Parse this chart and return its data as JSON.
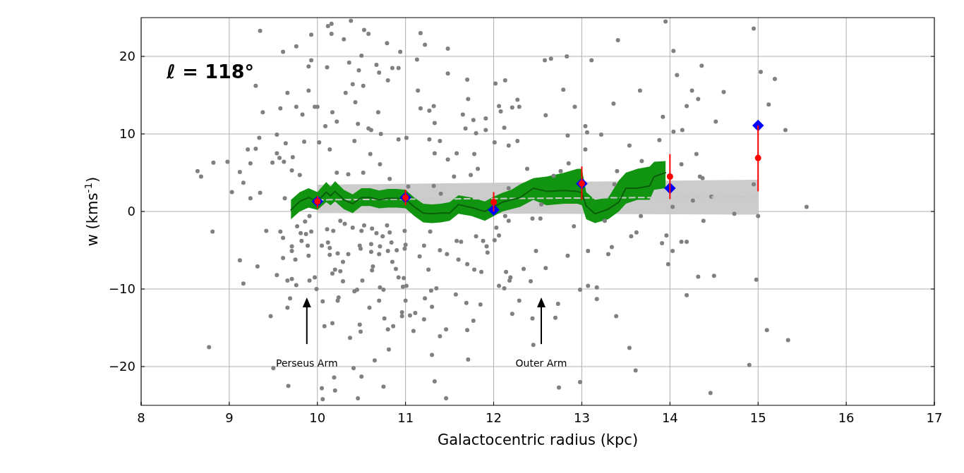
{
  "chart_data": {
    "type": "scatter",
    "xlabel": "Galactocentric radius (kpc)",
    "ylabel": "w (kms$^{-1}$)",
    "xlim": [
      8,
      17
    ],
    "ylim": [
      -25,
      25
    ],
    "xticks": [
      8,
      9,
      10,
      11,
      12,
      13,
      14,
      15,
      16,
      17
    ],
    "yticks": [
      -20,
      -10,
      0,
      10,
      20
    ],
    "grid": true,
    "annotations": [
      "ℓ = 118°",
      "Perseus Arm",
      "Outer Arm"
    ],
    "series": [
      {
        "type": "scatter",
        "color": "#808080",
        "marker": "circle",
        "x": [
          8.64,
          8.68,
          8.82,
          8.98,
          9.03,
          9.12,
          9.16,
          9.21,
          9.24,
          9.24,
          9.3,
          9.3,
          9.34,
          9.35,
          9.35,
          9.38,
          9.49,
          9.54,
          9.54,
          9.57,
          9.58,
          9.61,
          9.62,
          9.63,
          9.64,
          9.66,
          9.71,
          9.72,
          9.76,
          9.76,
          9.8,
          9.83,
          9.85,
          9.9,
          9.9,
          9.93,
          9.93,
          9.97,
          10.0,
          10.02,
          10.09,
          10.11,
          10.12,
          10.16,
          10.16,
          10.17,
          10.22,
          10.3,
          10.32,
          10.36,
          10.38,
          10.4,
          10.43,
          10.46,
          10.47,
          10.5,
          10.52,
          10.53,
          10.58,
          10.58,
          10.61,
          10.67,
          10.69,
          10.7,
          10.72,
          10.79,
          10.8,
          10.85,
          10.92,
          10.92,
          10.94,
          10.22,
          10.35,
          10.52,
          10.71,
          10.82,
          10.6,
          10.42,
          10.14,
          11.17,
          11.22,
          11.48,
          11.13,
          11.48,
          11.7,
          11.14,
          11.71,
          11.17,
          11.32,
          11.27,
          11.33,
          11.65,
          11.77,
          11.91,
          11.68,
          11.8,
          11.91,
          11.01,
          11.27,
          11.39,
          11.48,
          11.58,
          11.33,
          11.78,
          12.02,
          12.13,
          12.06,
          12.08,
          12.21,
          12.29,
          12.27,
          12.12,
          12.01,
          12.17,
          12.27,
          12.38,
          12.58,
          12.65,
          12.83,
          12.59,
          12.79,
          12.92,
          12.84,
          12.85,
          12.76,
          12.68,
          13.11,
          13.04,
          13.06,
          13.04,
          13.22,
          13.41,
          13.36,
          13.54,
          13.66,
          13.68,
          13.4,
          13.88,
          13.92,
          13.95,
          11.03,
          11.32,
          11.4,
          11.55,
          11.74,
          11.82,
          12.17,
          12.54,
          13.37,
          14.95,
          14.04,
          14.36,
          14.08,
          15.03,
          15.19,
          14.25,
          14.61,
          14.32,
          14.19,
          15.12,
          14.52,
          14.04,
          14.14,
          15.31,
          14.3,
          14.13,
          14.34,
          14.37,
          14.95,
          14.47,
          14.26,
          14.03,
          15.55,
          14.73,
          15.0,
          14.38,
          13.96,
          14.13,
          14.19,
          14.03,
          13.98,
          14.32,
          14.5,
          14.98,
          14.19,
          15.1,
          15.34,
          14.9,
          14.46,
          13.67,
          13.26,
          12.91,
          13.56,
          13.62,
          13.91,
          13.34,
          13.3,
          13.07,
          12.84,
          12.59,
          12.34,
          12.48,
          12.14,
          12.19,
          12.18,
          12.42,
          12.06,
          12.12,
          12.98,
          13.07,
          13.17,
          13.17,
          13.39,
          12.73,
          12.29,
          12.21,
          12.44,
          12.7,
          12.45,
          13.54,
          13.61,
          12.98,
          12.74,
          12.01,
          12.06,
          12.03,
          12.17,
          12.44,
          12.53,
          12.13,
          10.99,
          11.0,
          10.99,
          11.28,
          11.21,
          11.16,
          11.26,
          11.39,
          11.47,
          11.6,
          11.58,
          11.63,
          11.7,
          11.78,
          11.86,
          11.93,
          11.92,
          11.8,
          11.88,
          10.98,
          10.97,
          11.01,
          11.29,
          11.35,
          11.57,
          11.22,
          11.0,
          11.3,
          11.69,
          11.85,
          10.96,
          10.96,
          11.05,
          11.11,
          11.21,
          11.77,
          11.09,
          11.46,
          11.7,
          11.39,
          11.3,
          11.71,
          11.33,
          11.46,
          8.81,
          8.77,
          9.12,
          9.32,
          9.16,
          9.42,
          9.58,
          9.61,
          9.61,
          9.54,
          9.66,
          9.71,
          9.76,
          9.71,
          9.71,
          9.75,
          9.69,
          9.66,
          9.47,
          9.5,
          9.67,
          9.91,
          9.97,
          9.99,
          9.9,
          9.89,
          9.82,
          9.87,
          9.93,
          9.81,
          9.77,
          9.86,
          9.91,
          10.06,
          10.08,
          10.17,
          10.24,
          10.23,
          10.37,
          10.48,
          10.49,
          10.59,
          10.7,
          10.76,
          10.8,
          10.86,
          10.81,
          10.65,
          10.41,
          10.19,
          10.2,
          10.05,
          10.06,
          10.46,
          10.5,
          10.75,
          10.42,
          10.45,
          10.71,
          10.75,
          10.51,
          10.62,
          10.29,
          10.17,
          10.2,
          10.26,
          10.29,
          10.35,
          10.23,
          10.14,
          10.14,
          10.05,
          10.12,
          10.11,
          10.18,
          10.26,
          10.31,
          10.4,
          10.5,
          10.53,
          10.67,
          10.74,
          10.82,
          10.79,
          10.62,
          10.84,
          10.8,
          10.9,
          10.71,
          10.61,
          10.48,
          10.49,
          10.61,
          10.7,
          10.63,
          10.85,
          10.89,
          10.92
        ],
        "values": [
          5.2,
          4.5,
          6.3,
          6.4,
          2.5,
          5.1,
          3.7,
          8.0,
          6.2,
          1.7,
          16.2,
          8.1,
          9.5,
          2.4,
          23.3,
          12.8,
          6.3,
          7.5,
          9.9,
          6.9,
          13.3,
          20.6,
          6.4,
          1.7,
          8.8,
          15.3,
          5.3,
          7.0,
          21.3,
          13.5,
          4.7,
          12.5,
          9.0,
          15.6,
          18.7,
          19.5,
          22.8,
          13.5,
          13.5,
          8.9,
          11.0,
          18.6,
          23.9,
          24.2,
          22.9,
          12.8,
          11.6,
          22.2,
          15.3,
          19.2,
          24.6,
          16.4,
          14.1,
          11.3,
          18.2,
          20.1,
          16.2,
          23.4,
          22.9,
          10.7,
          10.5,
          18.9,
          12.8,
          17.9,
          10.0,
          21.7,
          16.9,
          18.5,
          18.5,
          9.3,
          20.6,
          5.0,
          4.8,
          5.0,
          6.1,
          4.2,
          7.4,
          9.1,
          8.0,
          23.0,
          21.5,
          21.0,
          19.6,
          17.8,
          17.0,
          15.6,
          14.5,
          13.3,
          13.6,
          13.0,
          11.4,
          12.5,
          11.8,
          12.0,
          10.7,
          10.1,
          10.5,
          9.5,
          9.3,
          9.1,
          6.7,
          7.5,
          7.5,
          7.4,
          16.5,
          16.9,
          13.6,
          12.9,
          13.4,
          13.5,
          14.4,
          10.8,
          8.9,
          8.5,
          9.1,
          5.5,
          19.5,
          19.7,
          20.0,
          12.4,
          15.7,
          13.5,
          9.8,
          6.2,
          5.2,
          4.6,
          19.5,
          11.0,
          10.2,
          8.0,
          9.9,
          22.1,
          13.9,
          8.5,
          15.6,
          6.5,
          5.2,
          9.2,
          12.2,
          24.5,
          3.2,
          3.3,
          2.3,
          4.5,
          4.7,
          5.5,
          3.0,
          0.9,
          3.5,
          23.6,
          20.7,
          18.8,
          17.6,
          18.0,
          17.1,
          15.6,
          15.4,
          14.5,
          13.6,
          13.8,
          11.6,
          10.3,
          10.5,
          10.5,
          7.4,
          6.1,
          4.5,
          4.3,
          3.5,
          1.9,
          1.4,
          0.6,
          0.6,
          -0.3,
          -0.6,
          -1.2,
          -3.1,
          -3.9,
          -3.9,
          -5.1,
          -6.8,
          -8.4,
          -8.3,
          -8.8,
          -10.8,
          -15.3,
          -16.6,
          -19.8,
          -23.4,
          -0.6,
          -1.2,
          -1.9,
          -3.2,
          -2.7,
          -4.1,
          -4.6,
          -5.5,
          -5.1,
          -5.7,
          -7.3,
          -7.4,
          -5.1,
          -7.8,
          -8.5,
          -8.9,
          -9.0,
          -9.6,
          -9.9,
          -10.1,
          -9.6,
          -9.8,
          -11.3,
          -13.5,
          -11.9,
          -11.5,
          -13.2,
          -13.8,
          -13.7,
          -17.2,
          -17.6,
          -20.5,
          -22.0,
          -22.7,
          -3.7,
          -3.1,
          -2.1,
          -1.2,
          -0.9,
          -0.9,
          -0.6,
          -2.5,
          -4.3,
          -4.8,
          -2.6,
          -4.4,
          -5.8,
          -7.5,
          -5.0,
          -5.5,
          -6.2,
          -3.8,
          -3.9,
          -6.8,
          -7.5,
          -7.8,
          -5.3,
          -4.5,
          -3.2,
          -3.8,
          -8.6,
          -9.7,
          -9.6,
          -10.2,
          -9.9,
          -10.7,
          -11.2,
          -11.5,
          -12.3,
          -11.8,
          -12.0,
          -13.0,
          -13.5,
          -13.4,
          -13.1,
          -13.9,
          -14.1,
          -15.4,
          -15.2,
          -15.3,
          -16.1,
          -18.5,
          -19.1,
          -21.9,
          -24.1,
          -2.6,
          -17.5,
          -6.3,
          -7.1,
          -9.3,
          -2.5,
          -2.6,
          -3.4,
          -6.0,
          -8.2,
          -8.9,
          -8.7,
          -9.5,
          -4.5,
          -5.1,
          -6.2,
          -11.2,
          -12.4,
          -13.5,
          -20.2,
          -22.5,
          -8.9,
          -8.5,
          -10.0,
          -5.7,
          -4.4,
          -3.8,
          -2.9,
          -2.6,
          -2.8,
          -1.9,
          -1.3,
          -0.6,
          -11.6,
          -14.8,
          -14.4,
          -11.1,
          -11.5,
          -16.3,
          -14.6,
          -15.5,
          -12.4,
          -11.5,
          -13.8,
          -15.2,
          -14.8,
          -17.8,
          -19.2,
          -20.2,
          -21.4,
          -23.1,
          -22.8,
          -24.2,
          -24.1,
          -21.3,
          -22.6,
          -10.3,
          -10.1,
          -9.8,
          -10.1,
          -8.9,
          -7.6,
          -9.0,
          -8.0,
          -7.5,
          -7.7,
          -6.5,
          -5.5,
          -5.4,
          -5.6,
          -4.7,
          -4.4,
          -4.0,
          -2.3,
          -2.5,
          -1.2,
          -1.6,
          -2.1,
          -2.5,
          -1.8,
          -2.8,
          -3.2,
          -2.7,
          -1.8,
          -2.2,
          -4.0,
          -5.1,
          -5.0,
          -4.5,
          -4.2,
          -4.4,
          -4.8,
          -5.2,
          -5.5,
          -7.1,
          -6.5,
          -7.4,
          -8.5
        ]
      },
      {
        "type": "line",
        "color": "#c8c8c8",
        "line_style": "dashed",
        "x": [
          10,
          15
        ],
        "values": [
          1.5,
          1.9
        ],
        "lower": [
          -0.2,
          -0.4
        ],
        "upper": [
          3.45,
          4.1
        ]
      },
      {
        "type": "line",
        "color": "#0b5e0b",
        "line_style": "solid",
        "x": [
          9.7,
          9.8,
          9.9,
          10.0,
          10.1,
          10.15,
          10.2,
          10.3,
          10.4,
          10.5,
          10.6,
          10.7,
          10.8,
          10.9,
          11.0,
          11.1,
          11.2,
          11.3,
          11.4,
          11.5,
          11.6,
          11.75,
          11.9,
          12.0,
          12.1,
          12.2,
          12.3,
          12.45,
          12.6,
          12.8,
          12.95,
          13.0,
          13.05,
          13.15,
          13.3,
          13.42,
          13.5,
          13.63,
          13.77,
          13.82,
          13.95
        ],
        "values": [
          0.2,
          1.3,
          1.8,
          1.3,
          2.5,
          2.0,
          2.6,
          1.5,
          1.0,
          1.8,
          1.8,
          1.5,
          1.7,
          1.7,
          1.6,
          0.6,
          -0.2,
          -0.3,
          -0.2,
          -0.2,
          0.9,
          0.5,
          0.0,
          0.6,
          1.2,
          1.5,
          1.8,
          3.0,
          2.6,
          2.7,
          2.6,
          2.4,
          0.7,
          -0.3,
          0.3,
          1.2,
          3.0,
          3.0,
          3.3,
          4.5,
          5.0
        ],
        "lower": [
          -1.0,
          0.0,
          0.5,
          0.2,
          1.2,
          0.8,
          1.3,
          0.3,
          -0.2,
          0.7,
          0.7,
          0.4,
          0.5,
          0.5,
          0.4,
          -0.6,
          -1.4,
          -1.5,
          -1.4,
          -1.2,
          -0.3,
          -0.6,
          -1.2,
          -0.6,
          0.0,
          0.3,
          0.6,
          1.5,
          0.8,
          1.0,
          1.0,
          0.8,
          -1.0,
          -1.5,
          -1.0,
          0.0,
          1.0,
          1.5,
          1.5,
          2.8,
          3.0
        ],
        "upper": [
          1.5,
          2.5,
          3.0,
          2.5,
          3.8,
          3.2,
          3.9,
          2.8,
          2.2,
          3.0,
          3.0,
          2.7,
          2.9,
          2.9,
          2.8,
          1.8,
          1.0,
          0.9,
          1.0,
          1.2,
          2.1,
          1.8,
          1.3,
          1.9,
          2.4,
          2.8,
          3.5,
          4.3,
          4.5,
          5.0,
          5.5,
          5.5,
          2.5,
          1.5,
          1.8,
          4.0,
          5.0,
          5.5,
          5.8,
          6.4,
          6.5
        ]
      },
      {
        "color": "#0000ff",
        "marker": "diamond",
        "x": [
          10,
          11,
          12,
          13,
          14,
          15
        ],
        "values": [
          1.3,
          1.8,
          0.2,
          3.6,
          3.0,
          11.1
        ]
      },
      {
        "color": "#ff0000",
        "marker": "circle",
        "x": [
          10,
          11,
          12,
          13,
          14,
          15
        ],
        "values": [
          1.3,
          1.8,
          1.2,
          3.6,
          4.5,
          6.9
        ],
        "errors": [
          [
            0.4,
            2.0
          ],
          [
            0.8,
            2.8
          ],
          [
            0.0,
            2.5
          ],
          [
            1.5,
            5.8
          ],
          [
            1.6,
            7.4
          ],
          [
            2.6,
            11.1
          ]
        ]
      }
    ]
  }
}
